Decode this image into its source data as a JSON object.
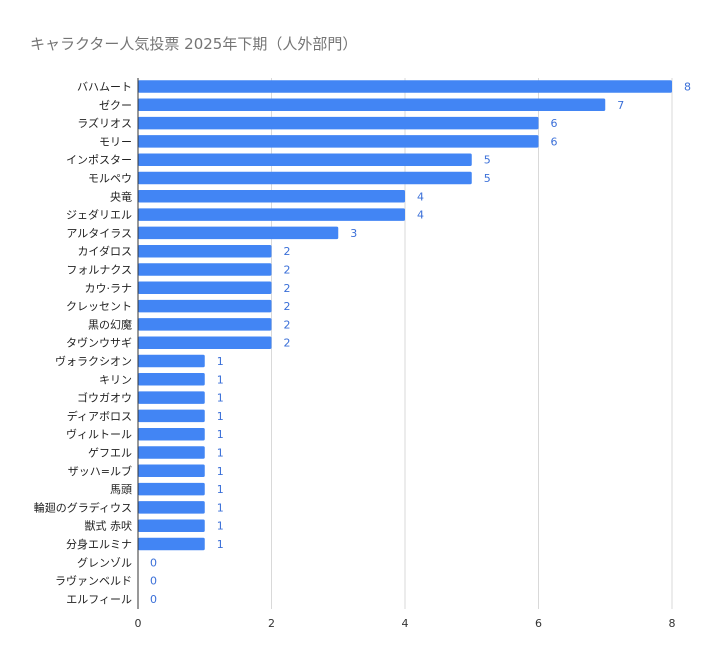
{
  "chart_data": {
    "type": "bar",
    "orientation": "horizontal",
    "title": "キャラクター人気投票 2025年下期（人外部門）",
    "xlabel": "",
    "ylabel": "",
    "xlim": [
      0,
      8
    ],
    "x_ticks": [
      "0",
      "2",
      "4",
      "6",
      "8"
    ],
    "grid": true,
    "legend": "none",
    "bar_color": "#4285f4",
    "categories": [
      "バハムート",
      "ゼクー",
      "ラズリオス",
      "モリー",
      "インポスター",
      "モルペウ",
      "央竜",
      "ジェダリエル",
      "アルタイラス",
      "カイダロス",
      "フォルナクス",
      "カウ·ラナ",
      "クレッセント",
      "黒の幻魔",
      "タヴンウサギ",
      "ヴォラクシオン",
      "キリン",
      "ゴウガオウ",
      "ディアボロス",
      "ヴィルトール",
      "ゲフエル",
      "ザッハ=ルブ",
      "馬頭",
      "輪廻のグラディウス",
      "獣式 赤吠",
      "分身エルミナ",
      "グレンゾル",
      "ラヴァンベルド",
      "エルフィール"
    ],
    "values": [
      8,
      7,
      6,
      6,
      5,
      5,
      4,
      4,
      3,
      2,
      2,
      2,
      2,
      2,
      2,
      1,
      1,
      1,
      1,
      1,
      1,
      1,
      1,
      1,
      1,
      1,
      0,
      0,
      0
    ]
  }
}
